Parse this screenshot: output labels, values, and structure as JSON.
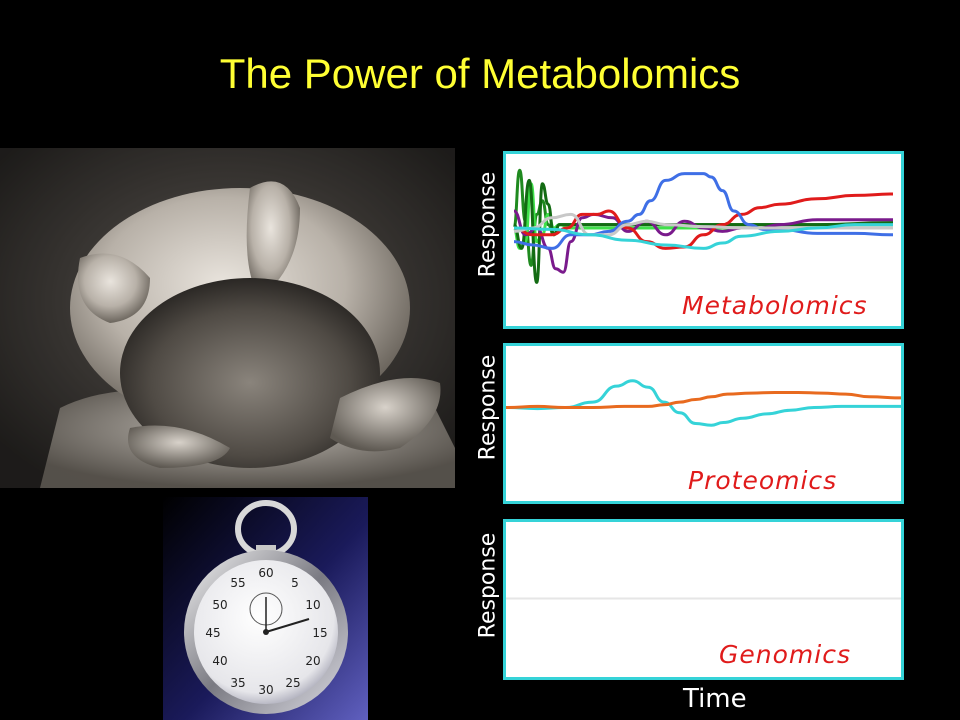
{
  "title": "The Power of Metabolomics",
  "x_axis_label": "Time",
  "colors": {
    "title": "#ffff33",
    "panel_border": "#35d3d8",
    "panel_label": "#e01b1b",
    "background": "#000000"
  },
  "chart_data": [
    {
      "type": "line",
      "ylabel": "Response",
      "xlabel": "",
      "annotation": "Metabolomics",
      "ylim": [
        -1,
        1
      ],
      "xlim": [
        0,
        100
      ],
      "series": [
        {
          "color": "#1f8a1f",
          "x": [
            0,
            1.5,
            3,
            4.5,
            6,
            7.5,
            9,
            10.5,
            12,
            13.5,
            15,
            17,
            20,
            30,
            50,
            70,
            100
          ],
          "y": [
            0,
            0.85,
            0.1,
            -0.55,
            0.2,
            0.4,
            0.05,
            -0.1,
            0.05,
            0.05,
            0.05,
            0.05,
            0.05,
            0.05,
            0.05,
            0.05,
            0.05
          ]
        },
        {
          "color": "#3fe04a",
          "x": [
            0,
            1.5,
            3,
            4.5,
            6,
            7.5,
            9,
            10.5,
            12,
            15,
            20,
            30,
            50,
            70,
            100
          ],
          "y": [
            0,
            -0.3,
            -0.2,
            0.65,
            -0.2,
            -0.1,
            0.2,
            0,
            0.05,
            0,
            0,
            0,
            0,
            0.0,
            0.0
          ]
        },
        {
          "color": "#136b13",
          "x": [
            0,
            2,
            4,
            6,
            7.5,
            9,
            10.5,
            12,
            14,
            18,
            25,
            40,
            60,
            80,
            100
          ],
          "y": [
            0.05,
            -0.3,
            0.7,
            -0.8,
            0.65,
            0.35,
            -0.1,
            0.05,
            0.05,
            0.05,
            0.05,
            0.05,
            0.05,
            0.05,
            0.08
          ]
        },
        {
          "color": "#7a1a8c",
          "x": [
            0,
            3,
            6,
            9,
            11,
            13,
            15,
            18,
            21,
            26,
            30,
            35,
            40,
            45,
            50,
            55,
            60,
            65,
            70,
            80,
            90,
            100
          ],
          "y": [
            0.25,
            -0.1,
            0.0,
            -0.3,
            -0.6,
            -0.65,
            -0.2,
            0.15,
            0.2,
            0.15,
            -0.05,
            0.1,
            -0.1,
            0.1,
            0.0,
            -0.05,
            0.0,
            0.0,
            0.05,
            0.12,
            0.12,
            0.12
          ]
        },
        {
          "color": "#e01b1b",
          "x": [
            0,
            5,
            10,
            14,
            18,
            22,
            25,
            30,
            35,
            40,
            45,
            50,
            55,
            60,
            65,
            70,
            80,
            90,
            100
          ],
          "y": [
            0,
            -0.1,
            -0.1,
            0.0,
            0.2,
            0.2,
            0.25,
            0.0,
            -0.2,
            -0.3,
            -0.28,
            -0.1,
            0.05,
            0.2,
            0.3,
            0.35,
            0.43,
            0.48,
            0.5
          ]
        },
        {
          "color": "#3f6fe6",
          "x": [
            0,
            5,
            10,
            15,
            20,
            25,
            30,
            33,
            36,
            40,
            45,
            50,
            52,
            55,
            58,
            62,
            66,
            70,
            80,
            90,
            100
          ],
          "y": [
            -0.2,
            -0.25,
            -0.3,
            -0.1,
            -0.1,
            -0.05,
            0.1,
            0.2,
            0.4,
            0.7,
            0.8,
            0.8,
            0.75,
            0.55,
            0.25,
            0.05,
            -0.02,
            -0.02,
            -0.08,
            -0.08,
            -0.1
          ]
        },
        {
          "color": "#c8c8c8",
          "x": [
            0,
            5,
            10,
            15,
            20,
            25,
            30,
            35,
            40,
            50,
            60,
            70,
            80,
            100
          ],
          "y": [
            -0.05,
            0.0,
            0.15,
            0.2,
            -0.1,
            -0.1,
            0.05,
            0.1,
            0.05,
            0.02,
            0.0,
            0.0,
            0.0,
            0.0
          ]
        },
        {
          "color": "#35d3d8",
          "x": [
            0,
            10,
            20,
            30,
            40,
            50,
            55,
            60,
            70,
            80,
            90,
            100
          ],
          "y": [
            0,
            -0.02,
            -0.1,
            -0.18,
            -0.25,
            -0.3,
            -0.22,
            -0.12,
            -0.05,
            0.0,
            0.05,
            0.05
          ]
        }
      ]
    },
    {
      "type": "line",
      "ylabel": "Response",
      "xlabel": "",
      "annotation": "Proteomics",
      "ylim": [
        -1,
        1
      ],
      "xlim": [
        0,
        100
      ],
      "series": [
        {
          "color": "#35d3d8",
          "x": [
            0,
            8,
            15,
            22,
            28,
            32,
            36,
            40,
            44,
            48,
            52,
            55,
            60,
            66,
            72,
            78,
            85,
            92,
            100
          ],
          "y": [
            0,
            -0.02,
            0,
            0.1,
            0.4,
            0.5,
            0.38,
            0.1,
            -0.1,
            -0.3,
            -0.33,
            -0.28,
            -0.2,
            -0.12,
            -0.05,
            0.0,
            0.02,
            0.02,
            0.02
          ]
        },
        {
          "color": "#e86a1f",
          "x": [
            0,
            8,
            15,
            22,
            30,
            36,
            40,
            44,
            48,
            52,
            56,
            62,
            68,
            74,
            80,
            86,
            92,
            100
          ],
          "y": [
            0,
            0.02,
            0,
            0,
            0.02,
            0.02,
            0.05,
            0.1,
            0.15,
            0.2,
            0.25,
            0.27,
            0.28,
            0.28,
            0.27,
            0.25,
            0.2,
            0.18
          ]
        }
      ]
    },
    {
      "type": "line",
      "ylabel": "Response",
      "xlabel": "Time",
      "annotation": "Genomics",
      "ylim": [
        -1,
        1
      ],
      "xlim": [
        0,
        100
      ],
      "series": [
        {
          "color": "#e6e6e6",
          "x": [
            0,
            50,
            100
          ],
          "y": [
            0,
            0,
            0
          ]
        }
      ]
    }
  ]
}
